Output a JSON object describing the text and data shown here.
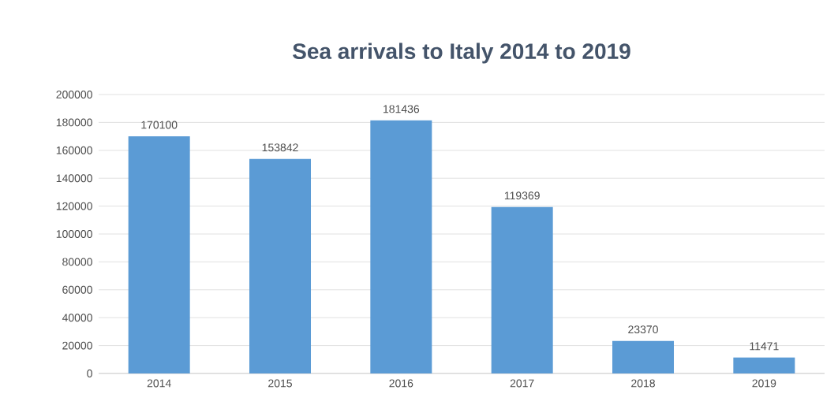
{
  "chart_data": {
    "type": "bar",
    "title": "Sea arrivals to Italy 2014 to 2019",
    "categories": [
      "2014",
      "2015",
      "2016",
      "2017",
      "2018",
      "2019"
    ],
    "values": [
      170100,
      153842,
      181436,
      119369,
      23370,
      11471
    ],
    "color": "#5b9bd5",
    "ylim": [
      0,
      200000
    ],
    "yticks": [
      0,
      20000,
      40000,
      60000,
      80000,
      100000,
      120000,
      140000,
      160000,
      180000,
      200000
    ],
    "grid": "y",
    "data_labels": true
  }
}
